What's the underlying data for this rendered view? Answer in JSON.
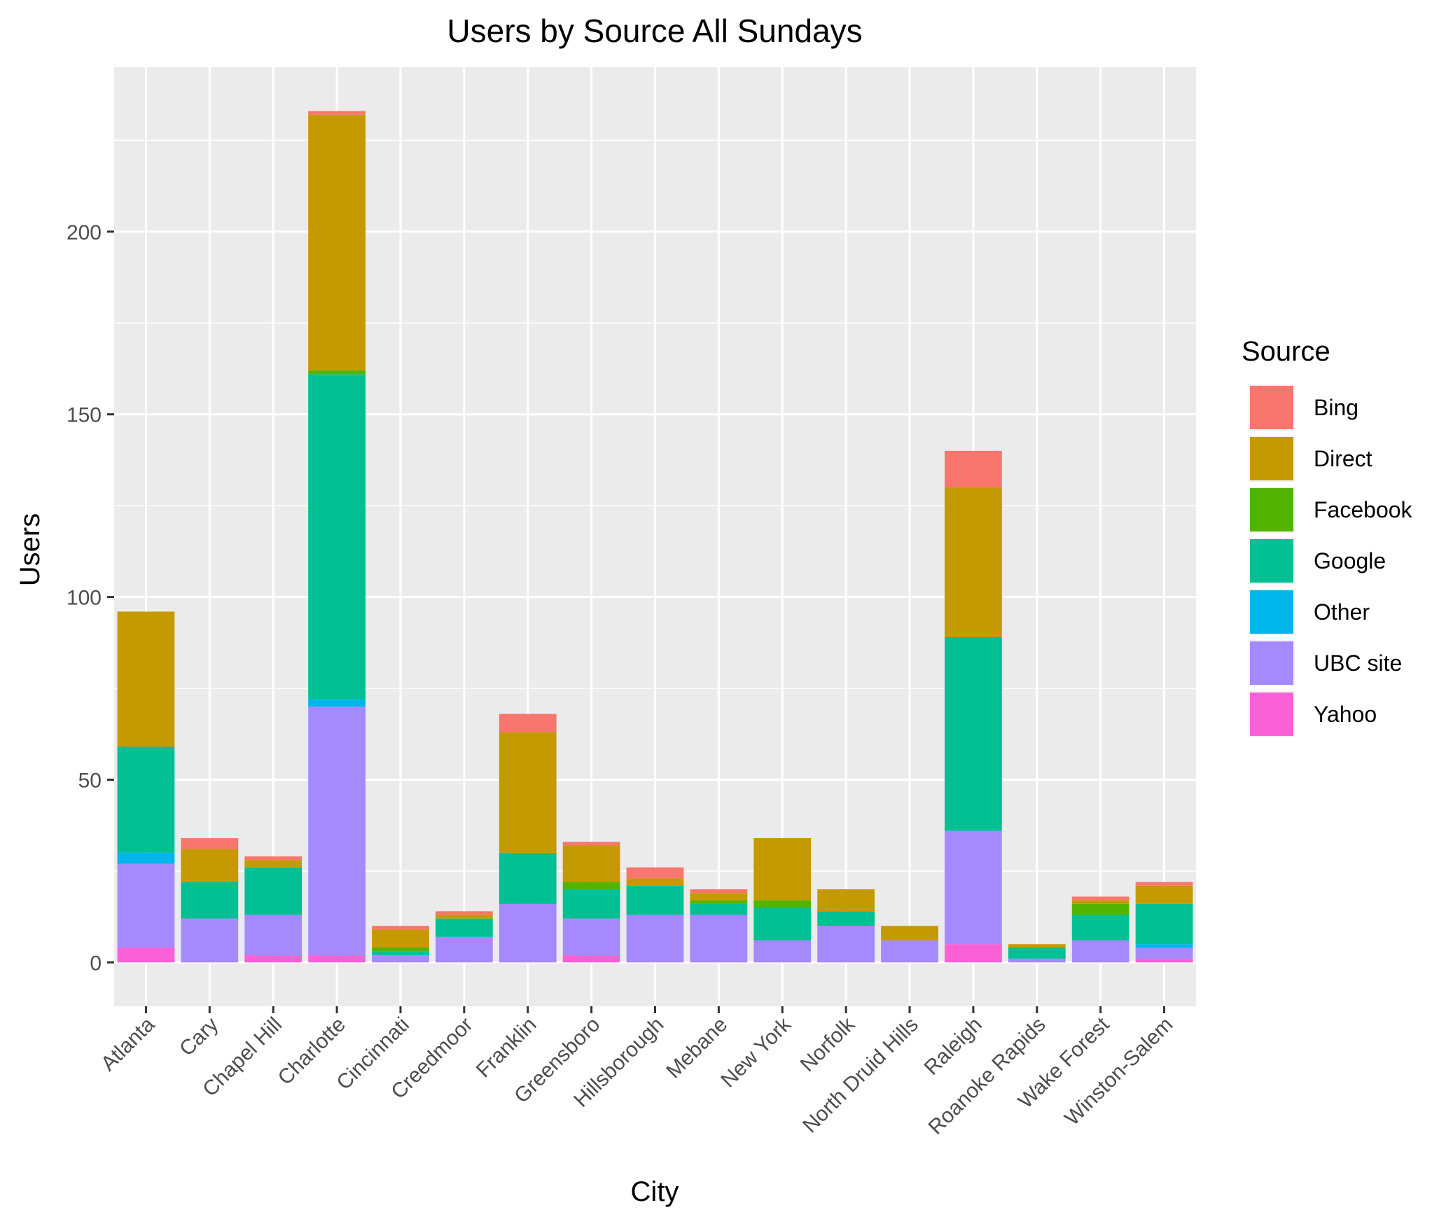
{
  "chart_data": {
    "type": "bar",
    "stacked": true,
    "title": "Users by Source All Sundays",
    "xlabel": "City",
    "ylabel": "Users",
    "ylim": [
      -12,
      245
    ],
    "yticks": [
      0,
      50,
      100,
      150,
      200
    ],
    "grid": true,
    "legend": {
      "title": "Source",
      "placement": "right"
    },
    "categories": [
      "Atlanta",
      "Cary",
      "Chapel Hill",
      "Charlotte",
      "Cincinnati",
      "Creedmoor",
      "Franklin",
      "Greensboro",
      "Hillsborough",
      "Mebane",
      "New York",
      "Norfolk",
      "North Druid Hills",
      "Raleigh",
      "Roanoke Rapids",
      "Wake Forest",
      "Winston-Salem"
    ],
    "series": [
      {
        "name": "Bing",
        "color": "#F8766D",
        "values": [
          0,
          3,
          1,
          1,
          1,
          1,
          5,
          1,
          3,
          1,
          0,
          0,
          0,
          10,
          0,
          1,
          1
        ]
      },
      {
        "name": "Direct",
        "color": "#C49A00",
        "values": [
          37,
          9,
          2,
          70,
          5,
          1,
          33,
          10,
          2,
          2,
          17,
          6,
          4,
          41,
          1,
          1,
          5
        ]
      },
      {
        "name": "Facebook",
        "color": "#53B400",
        "values": [
          0,
          0,
          0,
          1,
          1,
          0,
          0,
          2,
          0,
          1,
          2,
          0,
          0,
          0,
          0,
          3,
          0
        ]
      },
      {
        "name": "Google",
        "color": "#00C094",
        "values": [
          29,
          10,
          13,
          89,
          1,
          5,
          14,
          8,
          8,
          3,
          9,
          4,
          0,
          53,
          3,
          7,
          11
        ]
      },
      {
        "name": "Other",
        "color": "#00B6EB",
        "values": [
          3,
          0,
          0,
          2,
          0,
          0,
          0,
          0,
          0,
          0,
          0,
          0,
          0,
          0,
          0,
          0,
          1
        ]
      },
      {
        "name": "UBC site",
        "color": "#A58AFF",
        "values": [
          23,
          12,
          11,
          68,
          2,
          7,
          16,
          10,
          13,
          13,
          6,
          10,
          6,
          31,
          1,
          6,
          3
        ]
      },
      {
        "name": "Yahoo",
        "color": "#FB61D7",
        "values": [
          4,
          0,
          2,
          2,
          0,
          0,
          0,
          2,
          0,
          0,
          0,
          0,
          0,
          5,
          0,
          0,
          1
        ]
      }
    ]
  }
}
